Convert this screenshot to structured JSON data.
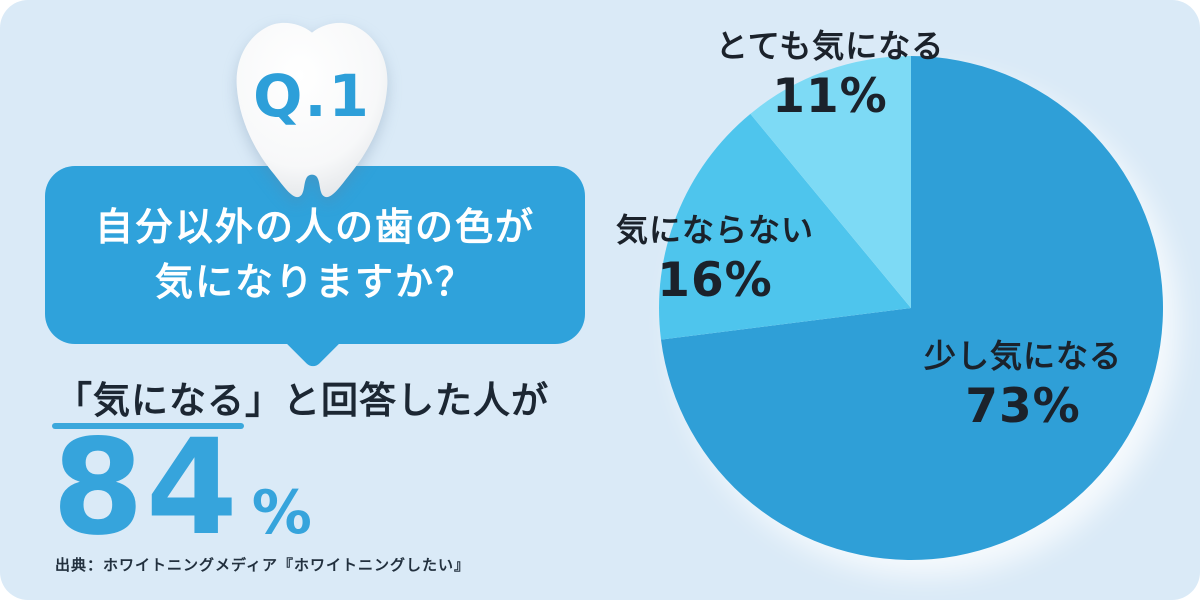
{
  "question": {
    "badge": "Q.1",
    "line1": "自分以外の人の歯の色が",
    "line2": "気になりますか？"
  },
  "answer": {
    "lead": "「気になる」と回答した人が",
    "value": "84",
    "unit": "%"
  },
  "source": "出典：ホワイトニングメディア『ホワイトニングしたい』",
  "colors": {
    "card_background": "#DAEAF7",
    "accent_blue": "#2FA2DB",
    "stat_blue": "#36A4DC",
    "underline_blue": "#3BA8DC",
    "dark_text": "#1C2733",
    "slice_dark": "#2F9FD7",
    "slice_medium": "#4EC5ED",
    "slice_light": "#7DDAF5"
  },
  "icons": {
    "tooth": "tooth-3d-icon"
  },
  "chart_data": {
    "type": "pie",
    "title": "自分以外の人の歯の色が気になりますか？",
    "start_angle_deg": 0,
    "direction": "clockwise",
    "legend_position": "around-slices",
    "slices": [
      {
        "label": "少し気になる",
        "value": 73,
        "value_label": "73%",
        "color": "#2F9FD7"
      },
      {
        "label": "気にならない",
        "value": 16,
        "value_label": "16%",
        "color": "#4EC5ED"
      },
      {
        "label": "とても気になる",
        "value": 11,
        "value_label": "11%",
        "color": "#7DDAF5"
      }
    ]
  }
}
